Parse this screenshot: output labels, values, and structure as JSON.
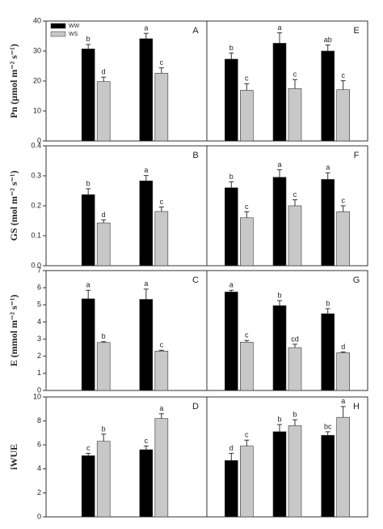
{
  "chart_data": [
    {
      "type": "bar",
      "panel": "A",
      "ylabel": "Pn (μmol m⁻² s⁻¹)",
      "ylim": [
        0,
        40
      ],
      "yticks": [
        0,
        10,
        20,
        30,
        40
      ],
      "categories": [
        null,
        null
      ],
      "legend": "upper left",
      "series": [
        {
          "name": "WW",
          "color": "#000000",
          "values": [
            30.7,
            34.1
          ],
          "errors": [
            1.5,
            1.8
          ],
          "letters": [
            "b",
            "a"
          ]
        },
        {
          "name": "WS",
          "color": "#c8c8c8",
          "values": [
            19.8,
            22.6
          ],
          "errors": [
            1.5,
            1.8
          ],
          "letters": [
            "d",
            "c"
          ]
        }
      ]
    },
    {
      "type": "bar",
      "panel": "E",
      "ylim": [
        0,
        40
      ],
      "categories": [
        null,
        null,
        null
      ],
      "series": [
        {
          "color": "#000000",
          "values": [
            27.3,
            32.6,
            30.0
          ],
          "errors": [
            2.0,
            3.5,
            2.0
          ],
          "letters": [
            "b",
            "a",
            "ab"
          ]
        },
        {
          "color": "#c8c8c8",
          "values": [
            16.9,
            17.5,
            17.1
          ],
          "errors": [
            2.2,
            3.0,
            3.0
          ],
          "letters": [
            "c",
            "c",
            "c"
          ]
        }
      ]
    },
    {
      "type": "bar",
      "panel": "B",
      "ylabel": "GS (mol m⁻² s⁻¹)",
      "ylim": [
        0,
        0.4
      ],
      "yticks": [
        {
          "value": 0,
          "label": "0.0"
        },
        0.1,
        0.2,
        0.3,
        0.4
      ],
      "categories": [
        null,
        null
      ],
      "series": [
        {
          "color": "#000000",
          "values": [
            0.237,
            0.283
          ],
          "errors": [
            0.02,
            0.018
          ],
          "letters": [
            "b",
            "a"
          ]
        },
        {
          "color": "#c8c8c8",
          "values": [
            0.143,
            0.181
          ],
          "errors": [
            0.01,
            0.015
          ],
          "letters": [
            "d",
            "c"
          ]
        }
      ]
    },
    {
      "type": "bar",
      "panel": "F",
      "ylim": [
        0,
        0.4
      ],
      "categories": [
        null,
        null,
        null
      ],
      "series": [
        {
          "color": "#000000",
          "values": [
            0.26,
            0.295,
            0.288
          ],
          "errors": [
            0.02,
            0.025,
            0.022
          ],
          "letters": [
            "b",
            "a",
            "a"
          ]
        },
        {
          "color": "#c8c8c8",
          "values": [
            0.16,
            0.2,
            0.18
          ],
          "errors": [
            0.02,
            0.02,
            0.02
          ],
          "letters": [
            "c",
            "c",
            "c"
          ]
        }
      ]
    },
    {
      "type": "bar",
      "panel": "C",
      "ylabel": "E (mmol m⁻² s⁻¹)",
      "ylim": [
        0,
        7
      ],
      "yticks": [
        0,
        1,
        2,
        3,
        4,
        5,
        6,
        7
      ],
      "categories": [
        null,
        null
      ],
      "series": [
        {
          "color": "#000000",
          "values": [
            5.35,
            5.32
          ],
          "errors": [
            0.5,
            0.6
          ],
          "letters": [
            "a",
            "a"
          ]
        },
        {
          "color": "#c8c8c8",
          "values": [
            2.8,
            2.3
          ],
          "errors": [
            0.05,
            0.05
          ],
          "letters": [
            "b",
            "c"
          ]
        }
      ]
    },
    {
      "type": "bar",
      "panel": "G",
      "ylim": [
        0,
        7
      ],
      "categories": [
        null,
        null,
        null
      ],
      "series": [
        {
          "color": "#000000",
          "values": [
            5.75,
            4.95,
            4.48
          ],
          "errors": [
            0.1,
            0.3,
            0.3
          ],
          "letters": [
            "a",
            "b",
            "b"
          ]
        },
        {
          "color": "#c8c8c8",
          "values": [
            2.82,
            2.5,
            2.2
          ],
          "errors": [
            0.1,
            0.2,
            0.05
          ],
          "letters": [
            "c",
            "cd",
            "d"
          ]
        }
      ]
    },
    {
      "type": "bar",
      "panel": "D",
      "ylabel": "iWUE",
      "ylim": [
        0,
        10
      ],
      "yticks": [
        0,
        2,
        4,
        6,
        8,
        10
      ],
      "categories": [
        null,
        null
      ],
      "series": [
        {
          "color": "#000000",
          "values": [
            5.1,
            5.6
          ],
          "errors": [
            0.2,
            0.3
          ],
          "letters": [
            "c",
            "c"
          ]
        },
        {
          "color": "#c8c8c8",
          "values": [
            6.3,
            8.2
          ],
          "errors": [
            0.6,
            0.4
          ],
          "letters": [
            "b",
            "a"
          ]
        }
      ]
    },
    {
      "type": "bar",
      "panel": "H",
      "ylim": [
        0,
        10
      ],
      "categories": [
        null,
        null,
        null
      ],
      "series": [
        {
          "color": "#000000",
          "values": [
            4.7,
            7.1,
            6.8
          ],
          "errors": [
            0.6,
            0.6,
            0.3
          ],
          "letters": [
            "d",
            "b",
            "bc"
          ]
        },
        {
          "color": "#c8c8c8",
          "values": [
            5.9,
            7.6,
            8.3
          ],
          "errors": [
            0.5,
            0.5,
            0.9
          ],
          "letters": [
            "c",
            "b",
            "a"
          ]
        }
      ]
    }
  ]
}
